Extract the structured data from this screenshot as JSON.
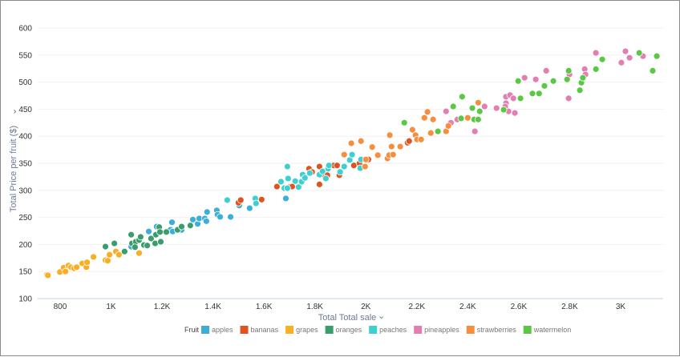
{
  "chart_data": {
    "type": "scatter",
    "xlabel": "Total Total sale",
    "ylabel": "Total Price per fruit ($)",
    "xlim": [
      712,
      3167
    ],
    "ylim": [
      100,
      600
    ],
    "x_ticks": [
      800,
      1000,
      1200,
      1400,
      1600,
      1800,
      2000,
      2200,
      2400,
      2600,
      2800,
      3000
    ],
    "x_tick_labels": [
      "800",
      "1K",
      "1.2K",
      "1.4K",
      "1.6K",
      "1.8K",
      "2K",
      "2.2K",
      "2.4K",
      "2.6K",
      "2.8K",
      "3K"
    ],
    "y_ticks": [
      100,
      150,
      200,
      250,
      300,
      350,
      400,
      450,
      500,
      550,
      600
    ],
    "y_tick_labels": [
      "100",
      "150",
      "200",
      "250",
      "300",
      "350",
      "400",
      "450",
      "500",
      "550",
      "600"
    ],
    "grid": true,
    "legend_title": "Fruit",
    "legend_position": "bottom",
    "series": [
      {
        "name": "apples",
        "color": "#3BAEDA",
        "points": [
          [
            1079,
            196
          ],
          [
            1148,
            224
          ],
          [
            1179,
            233
          ],
          [
            1233,
            227
          ],
          [
            1239,
            241
          ],
          [
            1242,
            224
          ],
          [
            1277,
            227
          ],
          [
            1321,
            246
          ],
          [
            1340,
            238
          ],
          [
            1346,
            248
          ],
          [
            1368,
            248
          ],
          [
            1374,
            243
          ],
          [
            1377,
            260
          ],
          [
            1415,
            263
          ],
          [
            1418,
            255
          ],
          [
            1428,
            251
          ],
          [
            1469,
            251
          ],
          [
            1544,
            267
          ],
          [
            1503,
            272
          ],
          [
            1686,
            285
          ]
        ]
      },
      {
        "name": "bananas",
        "color": "#E0531F",
        "points": [
          [
            1500,
            277
          ],
          [
            1509,
            282
          ],
          [
            1591,
            283
          ],
          [
            1651,
            307
          ],
          [
            1701,
            306
          ],
          [
            1711,
            307
          ],
          [
            1777,
            340
          ],
          [
            1789,
            334
          ],
          [
            1818,
            344
          ],
          [
            1818,
            311
          ],
          [
            1836,
            328
          ],
          [
            1849,
            328
          ],
          [
            1874,
            346
          ],
          [
            1887,
            346
          ],
          [
            1896,
            328
          ],
          [
            1953,
            346
          ],
          [
            1975,
            350
          ],
          [
            2010,
            357
          ],
          [
            2164,
            388
          ],
          [
            2170,
            391
          ]
        ]
      },
      {
        "name": "grapes",
        "color": "#F9AE24",
        "points": [
          [
            748,
            144
          ],
          [
            752,
            143
          ],
          [
            799,
            149
          ],
          [
            814,
            157
          ],
          [
            821,
            150
          ],
          [
            833,
            161
          ],
          [
            843,
            158
          ],
          [
            855,
            156
          ],
          [
            865,
            158
          ],
          [
            887,
            165
          ],
          [
            903,
            158
          ],
          [
            906,
            167
          ],
          [
            931,
            177
          ],
          [
            978,
            171
          ],
          [
            987,
            170
          ],
          [
            994,
            181
          ],
          [
            1019,
            187
          ],
          [
            1031,
            181
          ],
          [
            1110,
            184
          ]
        ]
      },
      {
        "name": "oranges",
        "color": "#3A9D6B",
        "points": [
          [
            978,
            196
          ],
          [
            1013,
            202
          ],
          [
            1053,
            187
          ],
          [
            1079,
            218
          ],
          [
            1082,
            202
          ],
          [
            1097,
            205
          ],
          [
            1110,
            208
          ],
          [
            1116,
            214
          ],
          [
            1129,
            199
          ],
          [
            1142,
            198
          ],
          [
            1157,
            211
          ],
          [
            1173,
            202
          ],
          [
            1176,
            218
          ],
          [
            1189,
            232
          ],
          [
            1192,
            223
          ],
          [
            1195,
            205
          ],
          [
            1217,
            223
          ],
          [
            1261,
            227
          ],
          [
            1277,
            233
          ],
          [
            1311,
            235
          ],
          [
            1094,
            195
          ]
        ]
      },
      {
        "name": "peaches",
        "color": "#3ECFD1",
        "points": [
          [
            1456,
            282
          ],
          [
            1566,
            285
          ],
          [
            1569,
            276
          ],
          [
            1667,
            316
          ],
          [
            1692,
            344
          ],
          [
            1695,
            322
          ],
          [
            1680,
            304
          ],
          [
            1692,
            304
          ],
          [
            1723,
            317
          ],
          [
            1736,
            306
          ],
          [
            1748,
            316
          ],
          [
            1752,
            329
          ],
          [
            1761,
            323
          ],
          [
            1780,
            332
          ],
          [
            1818,
            329
          ],
          [
            1830,
            335
          ],
          [
            1843,
            322
          ],
          [
            1852,
            340
          ],
          [
            1855,
            346
          ],
          [
            1899,
            334
          ],
          [
            1915,
            344
          ],
          [
            1937,
            356
          ],
          [
            1946,
            366
          ],
          [
            1978,
            341
          ],
          [
            1981,
            357
          ]
        ]
      },
      {
        "name": "pineapples",
        "color": "#E47DB2",
        "points": [
          [
            2315,
            446
          ],
          [
            2334,
            425
          ],
          [
            2359,
            431
          ],
          [
            2428,
            409
          ],
          [
            2466,
            455
          ],
          [
            2513,
            452
          ],
          [
            2550,
            473
          ],
          [
            2566,
            476
          ],
          [
            2579,
            470
          ],
          [
            2550,
            461
          ],
          [
            2547,
            455
          ],
          [
            2560,
            446
          ],
          [
            2585,
            443
          ],
          [
            2623,
            508
          ],
          [
            2667,
            505
          ],
          [
            2708,
            521
          ],
          [
            2796,
            470
          ],
          [
            2799,
            514
          ],
          [
            2859,
            524
          ],
          [
            2862,
            514
          ],
          [
            2903,
            554
          ],
          [
            3003,
            536
          ],
          [
            3019,
            557
          ],
          [
            3035,
            545
          ],
          [
            3088,
            548
          ]
        ]
      },
      {
        "name": "strawberries",
        "color": "#F68E3E",
        "points": [
          [
            1915,
            366
          ],
          [
            1943,
            387
          ],
          [
            1981,
            391
          ],
          [
            1997,
            344
          ],
          [
            2000,
            357
          ],
          [
            2025,
            380
          ],
          [
            2047,
            365
          ],
          [
            2085,
            359
          ],
          [
            2091,
            365
          ],
          [
            2094,
            402
          ],
          [
            2101,
            381
          ],
          [
            2107,
            366
          ],
          [
            2135,
            381
          ],
          [
            2183,
            412
          ],
          [
            2195,
            402
          ],
          [
            2201,
            394
          ],
          [
            2217,
            394
          ],
          [
            2230,
            434
          ],
          [
            2242,
            445
          ],
          [
            2255,
            406
          ],
          [
            2264,
            431
          ],
          [
            2315,
            409
          ],
          [
            2324,
            419
          ],
          [
            2400,
            434
          ],
          [
            2441,
            462
          ]
        ]
      },
      {
        "name": "watermelon",
        "color": "#5BC845",
        "points": [
          [
            2151,
            425
          ],
          [
            2283,
            409
          ],
          [
            2343,
            455
          ],
          [
            2378,
            473
          ],
          [
            2374,
            433
          ],
          [
            2418,
            452
          ],
          [
            2425,
            431
          ],
          [
            2441,
            431
          ],
          [
            2447,
            446
          ],
          [
            2541,
            449
          ],
          [
            2598,
            502
          ],
          [
            2607,
            470
          ],
          [
            2654,
            479
          ],
          [
            2680,
            479
          ],
          [
            2701,
            493
          ],
          [
            2736,
            502
          ],
          [
            2790,
            505
          ],
          [
            2796,
            521
          ],
          [
            2840,
            485
          ],
          [
            2846,
            499
          ],
          [
            2852,
            508
          ],
          [
            2903,
            524
          ],
          [
            2928,
            542
          ],
          [
            3073,
            554
          ],
          [
            3126,
            521
          ],
          [
            3142,
            548
          ]
        ]
      }
    ]
  },
  "colors": {
    "grid": "#f6eef0",
    "axis": "#c5d3e8"
  }
}
